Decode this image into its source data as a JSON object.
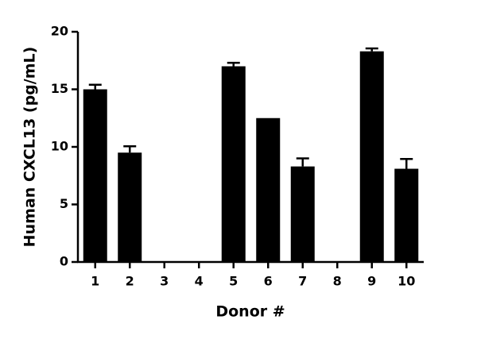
{
  "chart_data": {
    "type": "bar",
    "x_label": "Donor #",
    "y_label": "Human CXCL13 (pg/mL)",
    "categories": [
      "1",
      "2",
      "3",
      "4",
      "5",
      "6",
      "7",
      "8",
      "9",
      "10"
    ],
    "values": [
      15.0,
      9.5,
      0,
      0,
      17.0,
      12.5,
      8.3,
      0,
      18.3,
      8.1
    ],
    "errors": [
      0.4,
      0.55,
      0,
      0,
      0.3,
      0,
      0.7,
      0,
      0.25,
      0.85
    ],
    "color": "#000000",
    "ylim": [
      0,
      20
    ],
    "yticks": [
      0,
      5,
      10,
      15,
      20
    ],
    "grid": false
  }
}
